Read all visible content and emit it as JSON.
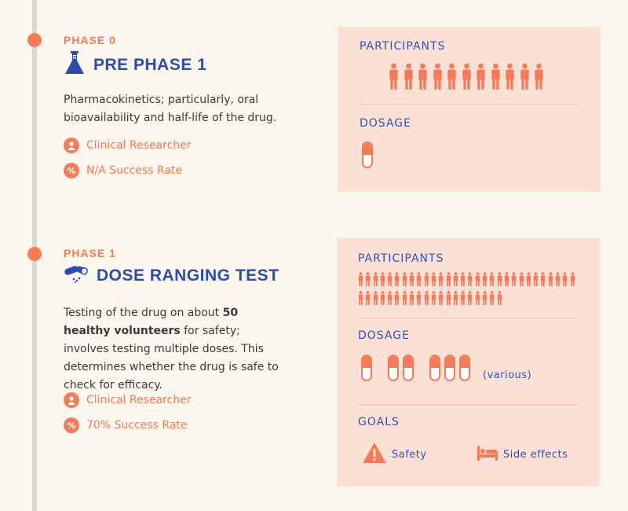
{
  "phases": [
    {
      "phase_label": "PHASE 0",
      "title": "PRE PHASE 1",
      "title_icon": "flask-icon",
      "description": "Pharmacokinetics; particularly, oral bioavailability and half-life of the drug.",
      "researcher": "Clinical Researcher",
      "success_rate": "N/A Success Rate",
      "participants_label": "PARTICIPANTS",
      "participants_count": 11,
      "dosage_label": "DOSAGE",
      "dosage_pills": [
        1
      ]
    },
    {
      "phase_label": "PHASE 1",
      "title": "DOSE RANGING TEST",
      "title_icon": "pills-icon",
      "description_parts": {
        "before": "Testing of the drug on about ",
        "bold": "50 healthy volunteers",
        "after": " for safety; involves testing multiple doses. This determines whether the drug is safe to check for efficacy."
      },
      "researcher": "Clinical Researcher",
      "success_rate": "70% Success Rate",
      "participants_label": "PARTICIPANTS",
      "participants_count": 50,
      "dosage_label": "DOSAGE",
      "dosage_pills": [
        1,
        2,
        3
      ],
      "dosage_note": "(various)",
      "goals_label": "GOALS",
      "goals": [
        {
          "icon": "warning-icon",
          "label": "Safety"
        },
        {
          "icon": "bed-icon",
          "label": "Side effects"
        }
      ]
    }
  ],
  "colors": {
    "accent": "#f57a5a",
    "title_blue": "#2e4bb0",
    "panel_bg": "#fbe1d5",
    "page_bg": "#fbf6ee"
  }
}
